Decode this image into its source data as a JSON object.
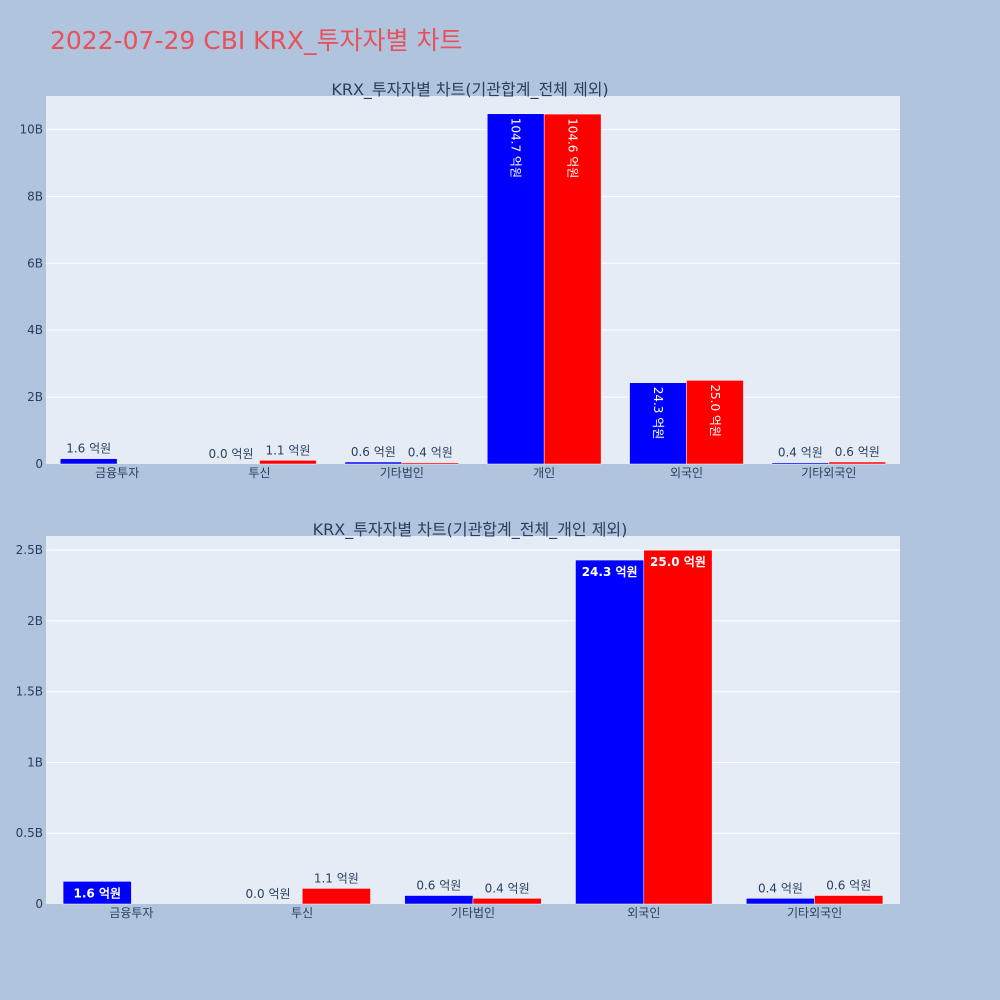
{
  "page_title": "2022-07-29 CBI KRX_투자자별 차트",
  "colors": {
    "background": "#b0c4de",
    "plot_background": "#e5ecf6",
    "gridline": "#ffffff",
    "buy": "#0000ff",
    "sell": "#ff0000",
    "title": "#e8505b",
    "text": "#2a3f5f"
  },
  "chart_data": [
    {
      "type": "bar",
      "title": "KRX_투자자별 차트(기관합계_전체 제외)",
      "categories": [
        "금융투자",
        "투신",
        "기타법인",
        "개인",
        "외국인",
        "기타외국인"
      ],
      "series": [
        {
          "values": [
            160000000,
            0,
            60000000,
            10470000000,
            2430000000,
            40000000
          ],
          "labels": [
            "1.6 억원",
            "0.0 억원",
            "0.6 억원",
            "104.7 억원",
            "24.3 억원",
            "0.4 억원"
          ]
        },
        {
          "values": [
            null,
            110000000,
            40000000,
            10460000000,
            2500000000,
            60000000
          ],
          "labels": [
            "",
            "1.1 억원",
            "0.4 억원",
            "104.6 억원",
            "25.0 억원",
            "0.6 억원"
          ]
        }
      ],
      "yticks": [
        0,
        2000000000,
        4000000000,
        6000000000,
        8000000000,
        10000000000
      ],
      "ytick_labels": [
        "0",
        "2B",
        "4B",
        "6B",
        "8B",
        "10B"
      ],
      "ylim": [
        0,
        11000000000
      ],
      "grid": true
    },
    {
      "type": "bar",
      "title": "KRX_투자자별 차트(기관합계_전체_개인 제외)",
      "categories": [
        "금융투자",
        "투신",
        "기타법인",
        "외국인",
        "기타외국인"
      ],
      "series": [
        {
          "values": [
            160000000,
            0,
            60000000,
            2430000000,
            40000000
          ],
          "labels": [
            "1.6 억원",
            "0.0 억원",
            "0.6 억원",
            "24.3 억원",
            "0.4 억원"
          ]
        },
        {
          "values": [
            null,
            110000000,
            40000000,
            2500000000,
            60000000
          ],
          "labels": [
            "",
            "1.1 억원",
            "0.4 억원",
            "25.0 억원",
            "0.6 억원"
          ]
        }
      ],
      "yticks": [
        0,
        500000000,
        1000000000,
        1500000000,
        2000000000,
        2500000000
      ],
      "ytick_labels": [
        "0",
        "0.5B",
        "1B",
        "1.5B",
        "2B",
        "2.5B"
      ],
      "ylim": [
        0,
        2600000000
      ],
      "grid": true
    }
  ]
}
